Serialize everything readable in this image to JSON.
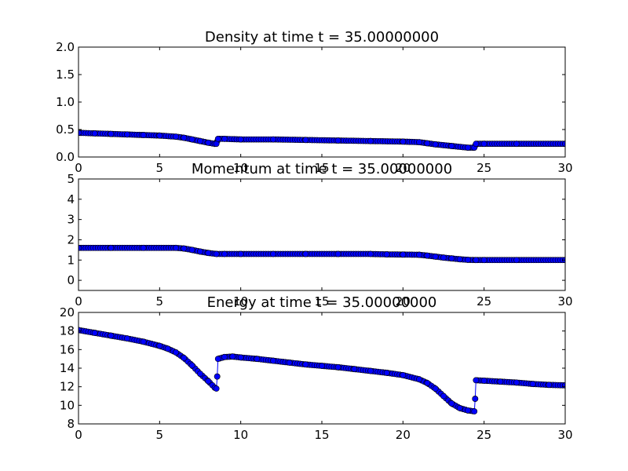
{
  "chart_data": [
    {
      "type": "line",
      "title": "Density at time t =    35.00000000",
      "xlim": [
        0,
        30
      ],
      "ylim": [
        0,
        2
      ],
      "xticks": [
        0,
        5,
        10,
        15,
        20,
        25,
        30
      ],
      "xtick_labels": [
        "0",
        "5",
        "10",
        "15",
        "20",
        "25",
        "30"
      ],
      "yticks": [
        0,
        0.5,
        1,
        1.5,
        2
      ],
      "ytick_labels": [
        "0.0",
        "0.5",
        "1.0",
        "1.5",
        "2.0"
      ],
      "grid": false,
      "marker_color": "#0000ff",
      "line_color": "#0000ff",
      "series": [
        {
          "points": [
            [
              0,
              0.44
            ],
            [
              1,
              0.43
            ],
            [
              2,
              0.42
            ],
            [
              3,
              0.41
            ],
            [
              4,
              0.4
            ],
            [
              5,
              0.39
            ],
            [
              6,
              0.37
            ],
            [
              6.5,
              0.35
            ],
            [
              7,
              0.32
            ],
            [
              7.5,
              0.29
            ],
            [
              8,
              0.26
            ],
            [
              8.4,
              0.24
            ],
            [
              8.5,
              0.24
            ],
            [
              8.6,
              0.33
            ],
            [
              9,
              0.33
            ],
            [
              10,
              0.32
            ],
            [
              12,
              0.32
            ],
            [
              14,
              0.31
            ],
            [
              16,
              0.3
            ],
            [
              18,
              0.29
            ],
            [
              20,
              0.28
            ],
            [
              21,
              0.27
            ],
            [
              21.5,
              0.25
            ],
            [
              22,
              0.23
            ],
            [
              23,
              0.2
            ],
            [
              24,
              0.17
            ],
            [
              24.4,
              0.17
            ],
            [
              24.5,
              0.24
            ],
            [
              25,
              0.24
            ],
            [
              27,
              0.24
            ],
            [
              30,
              0.24
            ]
          ]
        }
      ]
    },
    {
      "type": "line",
      "title": "Momentum at time t =    35.00000000",
      "xlim": [
        0,
        30
      ],
      "ylim": [
        -0.5,
        5
      ],
      "xticks": [
        0,
        5,
        10,
        15,
        20,
        25,
        30
      ],
      "xtick_labels": [
        "0",
        "5",
        "10",
        "15",
        "20",
        "25",
        "30"
      ],
      "yticks": [
        0,
        1,
        2,
        3,
        4,
        5
      ],
      "ytick_labels": [
        "0",
        "1",
        "2",
        "3",
        "4",
        "5"
      ],
      "grid": false,
      "marker_color": "#0000ff",
      "line_color": "#0000ff",
      "series": [
        {
          "points": [
            [
              0,
              1.6
            ],
            [
              2,
              1.6
            ],
            [
              4,
              1.6
            ],
            [
              6,
              1.6
            ],
            [
              6.5,
              1.57
            ],
            [
              7,
              1.5
            ],
            [
              7.5,
              1.42
            ],
            [
              8,
              1.35
            ],
            [
              8.5,
              1.3
            ],
            [
              9,
              1.3
            ],
            [
              10,
              1.3
            ],
            [
              12,
              1.3
            ],
            [
              14,
              1.3
            ],
            [
              16,
              1.3
            ],
            [
              18,
              1.3
            ],
            [
              19,
              1.28
            ],
            [
              20,
              1.27
            ],
            [
              21,
              1.26
            ],
            [
              21.5,
              1.22
            ],
            [
              22,
              1.17
            ],
            [
              22.5,
              1.12
            ],
            [
              23,
              1.08
            ],
            [
              23.5,
              1.04
            ],
            [
              24,
              1.01
            ],
            [
              24.5,
              1.0
            ],
            [
              25,
              1.0
            ],
            [
              27,
              1.0
            ],
            [
              30,
              1.0
            ]
          ]
        }
      ]
    },
    {
      "type": "line",
      "title": "Energy at time t =    35.00000000",
      "xlim": [
        0,
        30
      ],
      "ylim": [
        8,
        20
      ],
      "xticks": [
        0,
        5,
        10,
        15,
        20,
        25,
        30
      ],
      "xtick_labels": [
        "0",
        "5",
        "10",
        "15",
        "20",
        "25",
        "30"
      ],
      "yticks": [
        8,
        10,
        12,
        14,
        16,
        18,
        20
      ],
      "ytick_labels": [
        "8",
        "10",
        "12",
        "14",
        "16",
        "18",
        "20"
      ],
      "grid": false,
      "marker_color": "#0000ff",
      "line_color": "#0000ff",
      "series": [
        {
          "points": [
            [
              0,
              18.1
            ],
            [
              1,
              17.8
            ],
            [
              2,
              17.5
            ],
            [
              3,
              17.2
            ],
            [
              4,
              16.85
            ],
            [
              5,
              16.4
            ],
            [
              5.5,
              16.1
            ],
            [
              6,
              15.7
            ],
            [
              6.5,
              15.1
            ],
            [
              7,
              14.3
            ],
            [
              7.5,
              13.4
            ],
            [
              8,
              12.6
            ],
            [
              8.4,
              11.9
            ],
            [
              8.5,
              11.8
            ],
            [
              8.55,
              13.1
            ],
            [
              8.6,
              15.0
            ],
            [
              9,
              15.2
            ],
            [
              9.5,
              15.25
            ],
            [
              10,
              15.15
            ],
            [
              11,
              15.0
            ],
            [
              12,
              14.8
            ],
            [
              13,
              14.6
            ],
            [
              14,
              14.4
            ],
            [
              15,
              14.25
            ],
            [
              16,
              14.1
            ],
            [
              17,
              13.9
            ],
            [
              18,
              13.7
            ],
            [
              19,
              13.5
            ],
            [
              20,
              13.25
            ],
            [
              21,
              12.8
            ],
            [
              21.5,
              12.4
            ],
            [
              22,
              11.8
            ],
            [
              22.5,
              11.0
            ],
            [
              23,
              10.2
            ],
            [
              23.5,
              9.7
            ],
            [
              24,
              9.45
            ],
            [
              24.4,
              9.35
            ],
            [
              24.45,
              10.7
            ],
            [
              24.5,
              12.7
            ],
            [
              25,
              12.65
            ],
            [
              26,
              12.55
            ],
            [
              27,
              12.45
            ],
            [
              28,
              12.3
            ],
            [
              29,
              12.2
            ],
            [
              30,
              12.15
            ]
          ]
        }
      ]
    }
  ]
}
